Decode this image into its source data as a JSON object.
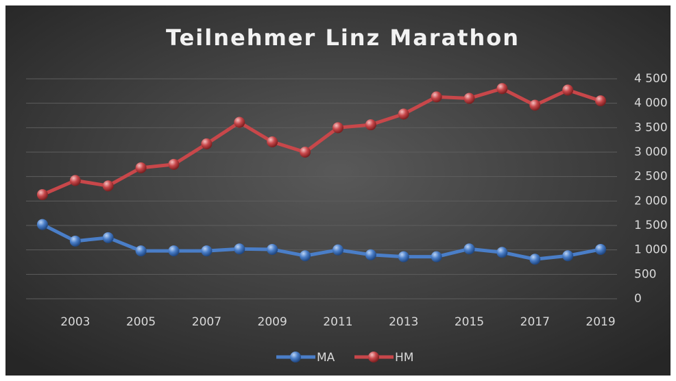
{
  "chart_data": {
    "type": "line",
    "title": "Teilnehmer Linz Marathon",
    "x": [
      2002,
      2003,
      2004,
      2005,
      2006,
      2007,
      2008,
      2009,
      2010,
      2011,
      2012,
      2013,
      2014,
      2015,
      2016,
      2017,
      2018,
      2019
    ],
    "xlim": [
      2001.5,
      2019.5
    ],
    "xticks": [
      2003,
      2005,
      2007,
      2009,
      2011,
      2013,
      2015,
      2017,
      2019
    ],
    "ylim": [
      0,
      4500
    ],
    "yticks": [
      0,
      500,
      {
        "value": 1000,
        "label": "1 000"
      },
      {
        "value": 1500,
        "label": "1 500"
      },
      {
        "value": 2000,
        "label": "2 000"
      },
      {
        "value": 2500,
        "label": "2 500"
      },
      {
        "value": 3000,
        "label": "3 000"
      },
      {
        "value": 3500,
        "label": "3 500"
      },
      {
        "value": 4000,
        "label": "4 000"
      },
      {
        "value": 4500,
        "label": "4 500"
      }
    ],
    "grid": true,
    "legend": "bottom",
    "series": [
      {
        "name": "MA",
        "color": "#4a7ec8",
        "values": [
          1520,
          1180,
          1250,
          980,
          980,
          980,
          1020,
          1010,
          880,
          1000,
          900,
          860,
          860,
          1020,
          950,
          810,
          880,
          1010
        ]
      },
      {
        "name": "HM",
        "color": "#c8474a",
        "values": [
          2130,
          2420,
          2310,
          2680,
          2750,
          3170,
          3610,
          3210,
          3000,
          3500,
          3560,
          3780,
          4130,
          4100,
          4300,
          3960,
          4270,
          4050
        ]
      }
    ]
  }
}
